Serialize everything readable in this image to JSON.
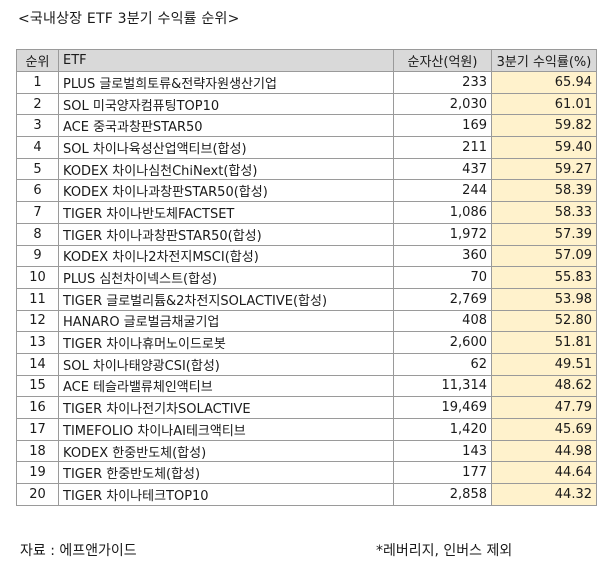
{
  "title": "<국내상장 ETF 3분기 수익률 순위>",
  "table": {
    "headers": {
      "rank": "순위",
      "etf": "ETF",
      "aum": "순자산(억원)",
      "return": "3분기 수익률(%)"
    },
    "rows": [
      {
        "rank": "1",
        "name": "PLUS 글로벌희토류&전략자원생산기업",
        "aum": "233",
        "ret": "65.94"
      },
      {
        "rank": "2",
        "name": "SOL 미국양자컴퓨팅TOP10",
        "aum": "2,030",
        "ret": "61.01"
      },
      {
        "rank": "3",
        "name": "ACE 중국과창판STAR50",
        "aum": "169",
        "ret": "59.82"
      },
      {
        "rank": "4",
        "name": "SOL 차이나육성산업액티브(합성)",
        "aum": "211",
        "ret": "59.40"
      },
      {
        "rank": "5",
        "name": "KODEX 차이나심천ChiNext(합성)",
        "aum": "437",
        "ret": "59.27"
      },
      {
        "rank": "6",
        "name": "KODEX 차이나과창판STAR50(합성)",
        "aum": "244",
        "ret": "58.39"
      },
      {
        "rank": "7",
        "name": "TIGER 차이나반도체FACTSET",
        "aum": "1,086",
        "ret": "58.33"
      },
      {
        "rank": "8",
        "name": "TIGER 차이나과창판STAR50(합성)",
        "aum": "1,972",
        "ret": "57.39"
      },
      {
        "rank": "9",
        "name": "KODEX 차이나2차전지MSCI(합성)",
        "aum": "360",
        "ret": "57.09"
      },
      {
        "rank": "10",
        "name": "PLUS 심천차이넥스트(합성)",
        "aum": "70",
        "ret": "55.83"
      },
      {
        "rank": "11",
        "name": "TIGER 글로벌리튬&2차전지SOLACTIVE(합성)",
        "aum": "2,769",
        "ret": "53.98"
      },
      {
        "rank": "12",
        "name": "HANARO 글로벌금채굴기업",
        "aum": "408",
        "ret": "52.80"
      },
      {
        "rank": "13",
        "name": "TIGER 차이나휴머노이드로봇",
        "aum": "2,600",
        "ret": "51.81"
      },
      {
        "rank": "14",
        "name": "SOL 차이나태양광CSI(합성)",
        "aum": "62",
        "ret": "49.51"
      },
      {
        "rank": "15",
        "name": "ACE 테슬라밸류체인액티브",
        "aum": "11,314",
        "ret": "48.62"
      },
      {
        "rank": "16",
        "name": "TIGER 차이나전기차SOLACTIVE",
        "aum": "19,469",
        "ret": "47.79"
      },
      {
        "rank": "17",
        "name": "TIMEFOLIO 차이나AI테크액티브",
        "aum": "1,420",
        "ret": "45.69"
      },
      {
        "rank": "18",
        "name": "KODEX 한중반도체(합성)",
        "aum": "143",
        "ret": "44.98"
      },
      {
        "rank": "19",
        "name": "TIGER 한중반도체(합성)",
        "aum": "177",
        "ret": "44.64"
      },
      {
        "rank": "20",
        "name": "TIGER 차이나테크TOP10",
        "aum": "2,858",
        "ret": "44.32"
      }
    ]
  },
  "footer": {
    "source": "자료 : 에프앤가이드",
    "note": "*레버리지, 인버스 제외"
  },
  "colors": {
    "header_bg": "#d9d9d9",
    "return_header_bg": "#fce4b6",
    "return_cell_bg": "#fff2cc"
  }
}
